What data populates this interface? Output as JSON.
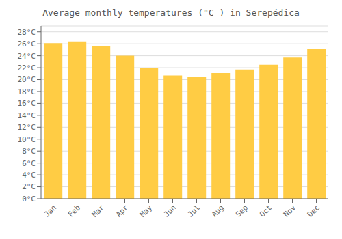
{
  "chart_data": {
    "type": "bar",
    "title": "Average monthly temperatures (°C ) in Serepédica",
    "categories": [
      "Jan",
      "Feb",
      "Mar",
      "Apr",
      "May",
      "Jun",
      "Jul",
      "Aug",
      "Sep",
      "Oct",
      "Nov",
      "Dec"
    ],
    "values": [
      26.1,
      26.4,
      25.6,
      24.0,
      22.0,
      20.7,
      20.4,
      21.1,
      21.7,
      22.5,
      23.7,
      25.1
    ],
    "color": "#FFCC44",
    "ylim": [
      0,
      29
    ],
    "yticks": [
      {
        "value": 0,
        "label": "0°C"
      },
      {
        "value": 2,
        "label": "2°C"
      },
      {
        "value": 4,
        "label": "4°C"
      },
      {
        "value": 6,
        "label": "6°C"
      },
      {
        "value": 8,
        "label": "8°C"
      },
      {
        "value": 10,
        "label": "10°C"
      },
      {
        "value": 12,
        "label": "12°C"
      },
      {
        "value": 14,
        "label": "14°C"
      },
      {
        "value": 16,
        "label": "16°C"
      },
      {
        "value": 18,
        "label": "18°C"
      },
      {
        "value": 20,
        "label": "20°C"
      },
      {
        "value": 22,
        "label": "22°C"
      },
      {
        "value": 24,
        "label": "24°C"
      },
      {
        "value": 26,
        "label": "26°C"
      },
      {
        "value": 28,
        "label": "28°C"
      }
    ],
    "grid": true
  }
}
